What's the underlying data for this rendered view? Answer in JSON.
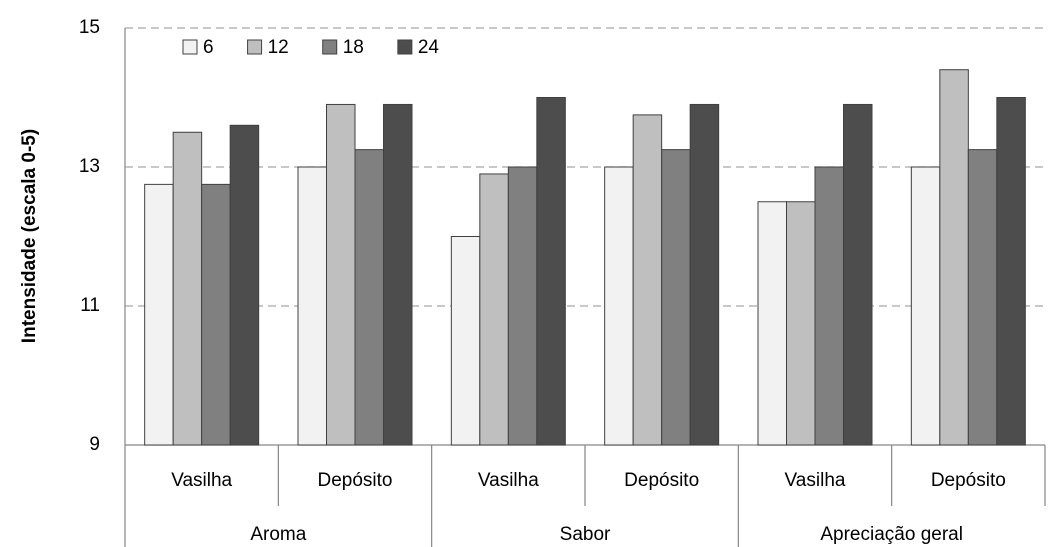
{
  "chart_data": {
    "type": "bar",
    "y_label": "Intensidade (escala 0-5)",
    "categories": [
      "Vasilha",
      "Depósito",
      "Vasilha",
      "Depósito",
      "Vasilha",
      "Depósito"
    ],
    "category_groups": [
      "Aroma",
      "Sabor",
      "Apreciação geral"
    ],
    "series": [
      {
        "name": "6",
        "color": "#f2f2f2",
        "values": [
          12.75,
          13,
          12,
          13,
          12.5,
          13
        ]
      },
      {
        "name": "12",
        "color": "#bfbfbf",
        "values": [
          13.5,
          13.9,
          12.9,
          13.75,
          12.5,
          14.4
        ]
      },
      {
        "name": "18",
        "color": "#808080",
        "values": [
          12.75,
          13.25,
          13,
          13.25,
          13,
          13.25
        ]
      },
      {
        "name": "24",
        "color": "#4d4d4d",
        "values": [
          13.6,
          13.9,
          14,
          13.9,
          13.9,
          14
        ]
      }
    ],
    "ylim": [
      9,
      15
    ],
    "yticks": [
      9,
      11,
      13,
      15
    ],
    "grid": true,
    "legend": "upper left"
  }
}
